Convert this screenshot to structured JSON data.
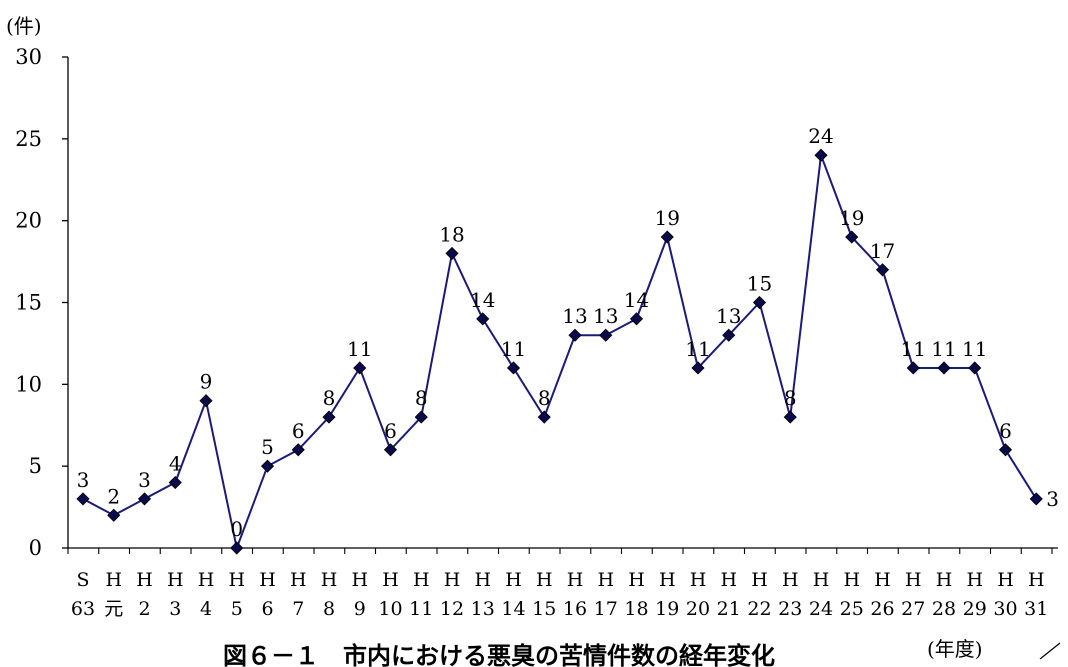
{
  "chart_data": {
    "type": "line",
    "title": "図６－１　市内における悪臭の苦情件数の経年変化",
    "ylabel": "(件)",
    "xlabel": "(年度)",
    "ylim": [
      0,
      30
    ],
    "yticks": [
      0,
      5,
      10,
      15,
      20,
      25,
      30
    ],
    "grid": false,
    "legend": "none",
    "colors": {
      "line": "#1a1a7a",
      "marker": "#0a0a4a"
    },
    "categories": [
      {
        "top": "S",
        "bottom": "63"
      },
      {
        "top": "H",
        "bottom": "元"
      },
      {
        "top": "H",
        "bottom": "2"
      },
      {
        "top": "H",
        "bottom": "3"
      },
      {
        "top": "H",
        "bottom": "4"
      },
      {
        "top": "H",
        "bottom": "5"
      },
      {
        "top": "H",
        "bottom": "6"
      },
      {
        "top": "H",
        "bottom": "7"
      },
      {
        "top": "H",
        "bottom": "8"
      },
      {
        "top": "H",
        "bottom": "9"
      },
      {
        "top": "H",
        "bottom": "10"
      },
      {
        "top": "H",
        "bottom": "11"
      },
      {
        "top": "H",
        "bottom": "12"
      },
      {
        "top": "H",
        "bottom": "13"
      },
      {
        "top": "H",
        "bottom": "14"
      },
      {
        "top": "H",
        "bottom": "15"
      },
      {
        "top": "H",
        "bottom": "16"
      },
      {
        "top": "H",
        "bottom": "17"
      },
      {
        "top": "H",
        "bottom": "18"
      },
      {
        "top": "H",
        "bottom": "19"
      },
      {
        "top": "H",
        "bottom": "20"
      },
      {
        "top": "H",
        "bottom": "21"
      },
      {
        "top": "H",
        "bottom": "22"
      },
      {
        "top": "H",
        "bottom": "23"
      },
      {
        "top": "H",
        "bottom": "24"
      },
      {
        "top": "H",
        "bottom": "25"
      },
      {
        "top": "H",
        "bottom": "26"
      },
      {
        "top": "H",
        "bottom": "27"
      },
      {
        "top": "H",
        "bottom": "28"
      },
      {
        "top": "H",
        "bottom": "29"
      },
      {
        "top": "H",
        "bottom": "30"
      },
      {
        "top": "H",
        "bottom": "31"
      }
    ],
    "series": [
      {
        "values": [
          3,
          2,
          3,
          4,
          9,
          0,
          5,
          6,
          8,
          11,
          6,
          8,
          18,
          14,
          11,
          8,
          13,
          13,
          14,
          19,
          11,
          13,
          15,
          8,
          24,
          19,
          17,
          11,
          11,
          11,
          6,
          3
        ]
      }
    ]
  }
}
